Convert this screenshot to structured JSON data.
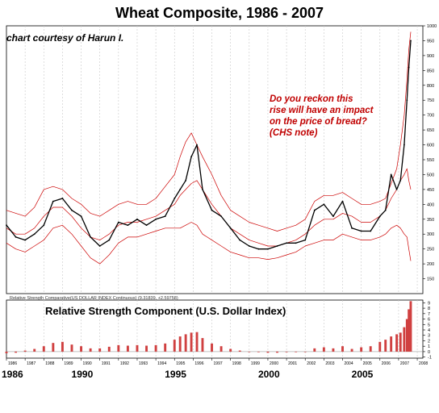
{
  "title": "Wheat Composite, 1986 - 2007",
  "courtesy": "chart courtesy of Harun I.",
  "annotation": "Do you reckon this\nrise will have an impact\non the price of bread?\n(CHS note)",
  "rs_legend": "Relative Strength Comparative(US DOLLAR INDEX Continuous) (9.31839, +2.59758)",
  "rs_title": "Relative Strength Component (U.S. Dollar Index)",
  "colors": {
    "price": "#000000",
    "bands": "#cc0000",
    "rs_bars": "#d04040",
    "grid": "#c8c8c8",
    "note": "#c00000"
  },
  "chart_data": [
    {
      "type": "line",
      "name": "price",
      "title": "Wheat Composite, 1986 - 2007",
      "ylim": [
        100,
        1000
      ],
      "yticks": [
        150,
        200,
        250,
        300,
        350,
        400,
        450,
        500,
        550,
        600,
        650,
        700,
        750,
        800,
        850,
        900,
        950,
        1000
      ],
      "xlim": [
        1986.0,
        2008.3
      ],
      "grid": true,
      "x": [
        1986.0,
        1986.5,
        1987.0,
        1987.5,
        1988.0,
        1988.5,
        1989.0,
        1989.5,
        1990.0,
        1990.5,
        1991.0,
        1991.5,
        1992.0,
        1992.5,
        1993.0,
        1993.5,
        1994.0,
        1994.5,
        1995.0,
        1995.3,
        1995.6,
        1995.9,
        1996.2,
        1996.5,
        1997.0,
        1997.5,
        1998.0,
        1998.5,
        1999.0,
        1999.5,
        2000.0,
        2000.5,
        2001.0,
        2001.5,
        2002.0,
        2002.5,
        2003.0,
        2003.5,
        2004.0,
        2004.5,
        2005.0,
        2005.5,
        2006.0,
        2006.3,
        2006.6,
        2006.9,
        2007.1,
        2007.3,
        2007.45,
        2007.55,
        2007.65
      ],
      "y": [
        330,
        290,
        280,
        300,
        330,
        410,
        420,
        380,
        360,
        290,
        260,
        280,
        340,
        330,
        350,
        330,
        350,
        360,
        420,
        450,
        480,
        560,
        600,
        450,
        380,
        360,
        320,
        280,
        260,
        250,
        250,
        260,
        270,
        270,
        280,
        380,
        400,
        360,
        410,
        320,
        310,
        310,
        360,
        380,
        500,
        450,
        480,
        600,
        750,
        860,
        950
      ],
      "band_upper": [
        380,
        370,
        360,
        390,
        450,
        460,
        450,
        420,
        400,
        370,
        360,
        380,
        400,
        410,
        400,
        400,
        420,
        460,
        500,
        560,
        610,
        640,
        600,
        560,
        500,
        430,
        380,
        360,
        340,
        330,
        320,
        310,
        320,
        330,
        350,
        410,
        430,
        430,
        440,
        420,
        400,
        400,
        410,
        420,
        470,
        520,
        600,
        700,
        820,
        920,
        980
      ],
      "band_middle": [
        320,
        300,
        300,
        320,
        360,
        390,
        390,
        360,
        320,
        290,
        280,
        300,
        330,
        340,
        340,
        350,
        360,
        380,
        400,
        430,
        450,
        470,
        480,
        450,
        400,
        360,
        320,
        300,
        280,
        270,
        260,
        260,
        270,
        280,
        300,
        330,
        350,
        350,
        370,
        360,
        340,
        340,
        360,
        380,
        420,
        450,
        480,
        500,
        520,
        480,
        450
      ],
      "band_lower": [
        270,
        250,
        240,
        260,
        280,
        320,
        330,
        300,
        260,
        220,
        200,
        230,
        270,
        290,
        290,
        300,
        310,
        320,
        320,
        320,
        330,
        340,
        330,
        300,
        280,
        260,
        240,
        230,
        220,
        220,
        215,
        220,
        230,
        240,
        260,
        270,
        280,
        280,
        300,
        290,
        280,
        280,
        290,
        300,
        320,
        330,
        320,
        300,
        290,
        250,
        210
      ]
    },
    {
      "type": "bar",
      "name": "relative_strength",
      "title": "Relative Strength Component (U.S. Dollar Index)",
      "ylim": [
        -1.2,
        9.5
      ],
      "yticks": [
        -1,
        0,
        1,
        2,
        3,
        4,
        5,
        6,
        7,
        8,
        9
      ],
      "x": [
        1986.0,
        1986.5,
        1987.0,
        1987.5,
        1988.0,
        1988.5,
        1989.0,
        1989.5,
        1990.0,
        1990.5,
        1991.0,
        1991.5,
        1992.0,
        1992.5,
        1993.0,
        1993.5,
        1994.0,
        1994.5,
        1995.0,
        1995.3,
        1995.6,
        1995.9,
        1996.2,
        1996.5,
        1997.0,
        1997.5,
        1998.0,
        1998.5,
        1999.0,
        1999.5,
        2000.0,
        2000.5,
        2001.0,
        2001.5,
        2002.0,
        2002.5,
        2003.0,
        2003.5,
        2004.0,
        2004.5,
        2005.0,
        2005.5,
        2006.0,
        2006.3,
        2006.6,
        2006.9,
        2007.1,
        2007.3,
        2007.45,
        2007.55,
        2007.65
      ],
      "values": [
        -0.3,
        -0.2,
        0.2,
        0.5,
        1.0,
        1.6,
        1.8,
        1.3,
        1.0,
        0.6,
        0.6,
        0.9,
        1.2,
        1.1,
        1.2,
        1.1,
        1.2,
        1.5,
        2.2,
        2.8,
        3.2,
        3.5,
        3.6,
        2.5,
        1.5,
        1.0,
        0.5,
        0.2,
        0.0,
        -0.1,
        -0.2,
        -0.2,
        -0.1,
        -0.1,
        0.0,
        0.6,
        0.8,
        0.6,
        1.0,
        0.5,
        0.8,
        1.0,
        1.8,
        2.2,
        2.8,
        3.2,
        3.5,
        4.5,
        6.0,
        7.8,
        9.3
      ]
    }
  ],
  "x_axis": {
    "year_labels": [
      "1986",
      "1987",
      "1988",
      "1989",
      "1990",
      "1991",
      "1992",
      "1993",
      "1994",
      "1995",
      "1996",
      "1997",
      "1998",
      "1999",
      "2000",
      "2001",
      "2002",
      "2003",
      "2004",
      "2005",
      "2006",
      "2007",
      "2008"
    ],
    "major_labels": [
      "1986",
      "1990",
      "1995",
      "2000",
      "2005"
    ]
  }
}
